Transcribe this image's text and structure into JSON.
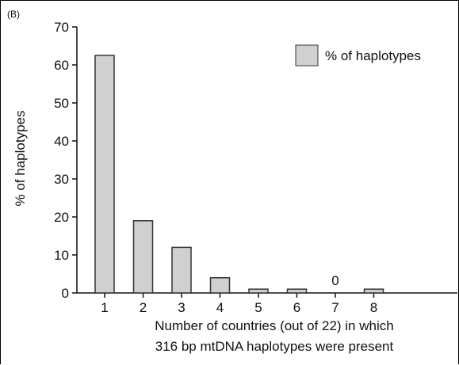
{
  "panel_label": "(B)",
  "colors": {
    "bar_fill": "#d0d0d0",
    "bar_stroke": "#333333",
    "axis": "#111111"
  },
  "chart_data": {
    "type": "bar",
    "categories": [
      "1",
      "2",
      "3",
      "4",
      "5",
      "6",
      "7",
      "8"
    ],
    "series": [
      {
        "name": "% of haplotypes",
        "values": [
          62.5,
          19,
          12,
          4,
          1,
          1,
          0,
          1
        ]
      }
    ],
    "annotations": [
      {
        "category": "7",
        "text": "0"
      }
    ],
    "title": "",
    "xlabel_line1": "Number of countries (out of 22) in which",
    "xlabel_line2": "316 bp mtDNA haplotypes were present",
    "ylabel": "% of haplotypes",
    "ylim": [
      0,
      70
    ],
    "yticks": [
      0,
      10,
      20,
      30,
      40,
      50,
      60,
      70
    ],
    "grid": false,
    "legend_placement": "top-right"
  }
}
